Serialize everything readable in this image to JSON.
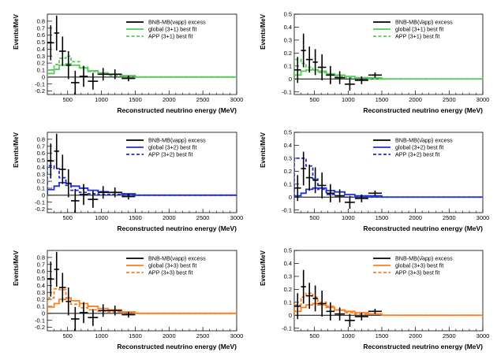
{
  "figure": {
    "description_free": true
  },
  "chart_data": [
    {
      "type": "line",
      "id": "nu-3p1",
      "xlabel": "Reconstructed neutrino energy (MeV)",
      "ylabel": "Events/MeV",
      "xlim": [
        200,
        3000
      ],
      "ylim": [
        -0.25,
        0.9
      ],
      "xticks": [
        500,
        1000,
        1500,
        2000,
        2500,
        3000
      ],
      "xtick_labels": [
        "500",
        "1000",
        "1500",
        "2000",
        "2500",
        "3000"
      ],
      "yticks": [
        -0.2,
        -0.1,
        0,
        0.1,
        0.2,
        0.3,
        0.4,
        0.5,
        0.6,
        0.7,
        0.8
      ],
      "ytick_labels": [
        "-0.2",
        "-0.1",
        "0",
        "0.1",
        "0.2",
        "0.3",
        "0.4",
        "0.5",
        "0.6",
        "0.7",
        "0.8"
      ],
      "bin_edges": [
        200,
        300,
        375,
        475,
        550,
        675,
        800,
        950,
        1100,
        1300,
        1500,
        3000
      ],
      "data": [
        {
          "x": 250,
          "xerr": 50,
          "y": 0.49,
          "yerr": 0.25
        },
        {
          "x": 337,
          "xerr": 37,
          "y": 0.63,
          "yerr": 0.25
        },
        {
          "x": 425,
          "xerr": 50,
          "y": 0.37,
          "yerr": 0.21
        },
        {
          "x": 512,
          "xerr": 37,
          "y": 0.17,
          "yerr": 0.2
        },
        {
          "x": 612,
          "xerr": 62,
          "y": -0.08,
          "yerr": 0.17
        },
        {
          "x": 737,
          "xerr": 62,
          "y": 0.01,
          "yerr": 0.15
        },
        {
          "x": 875,
          "xerr": 75,
          "y": -0.06,
          "yerr": 0.12
        },
        {
          "x": 1025,
          "xerr": 75,
          "y": 0.04,
          "yerr": 0.09
        },
        {
          "x": 1200,
          "xerr": 100,
          "y": 0.04,
          "yerr": 0.07
        },
        {
          "x": 1400,
          "xerr": 100,
          "y": -0.02,
          "yerr": 0.04
        }
      ],
      "series": [
        {
          "name": "global (3+1) best fit",
          "color": "#55cc55",
          "dash": "solid",
          "values": [
            0.05,
            0.11,
            0.17,
            0.19,
            0.17,
            0.13,
            0.09,
            0.06,
            0.04,
            0.02,
            0.0
          ]
        },
        {
          "name": "APP (3+1) best fit",
          "color": "#55cc55",
          "dash": "dashed",
          "values": [
            0.1,
            0.18,
            0.27,
            0.3,
            0.22,
            0.14,
            0.08,
            0.04,
            0.02,
            0.01,
            0.0
          ]
        }
      ],
      "legend": {
        "data_label": "BNB-MB(νapp) excess",
        "position": "top-right"
      }
    },
    {
      "type": "line",
      "id": "nubar-3p1",
      "xlabel": "Reconstructed neutrino energy (MeV)",
      "ylabel": "Events/MeV",
      "xlim": [
        200,
        3000
      ],
      "ylim": [
        -0.12,
        0.5
      ],
      "xticks": [
        500,
        1000,
        1500,
        2000,
        2500,
        3000
      ],
      "xtick_labels": [
        "500",
        "1000",
        "1500",
        "2000",
        "2500",
        "3000"
      ],
      "yticks": [
        -0.1,
        0,
        0.1,
        0.2,
        0.3,
        0.4,
        0.5
      ],
      "ytick_labels": [
        "-0.1",
        "0",
        "0.1",
        "0.2",
        "0.3",
        "0.4",
        "0.5"
      ],
      "bin_edges": [
        200,
        300,
        375,
        475,
        550,
        675,
        800,
        950,
        1100,
        1300,
        1500,
        3000
      ],
      "data": [
        {
          "x": 250,
          "xerr": 50,
          "y": 0.07,
          "yerr": 0.1
        },
        {
          "x": 337,
          "xerr": 37,
          "y": 0.22,
          "yerr": 0.13
        },
        {
          "x": 425,
          "xerr": 50,
          "y": 0.15,
          "yerr": 0.1
        },
        {
          "x": 512,
          "xerr": 37,
          "y": 0.13,
          "yerr": 0.1
        },
        {
          "x": 612,
          "xerr": 62,
          "y": 0.09,
          "yerr": 0.1
        },
        {
          "x": 737,
          "xerr": 62,
          "y": 0.03,
          "yerr": 0.07
        },
        {
          "x": 875,
          "xerr": 75,
          "y": 0.01,
          "yerr": 0.05
        },
        {
          "x": 1025,
          "xerr": 75,
          "y": -0.04,
          "yerr": 0.05
        },
        {
          "x": 1200,
          "xerr": 100,
          "y": -0.01,
          "yerr": 0.03
        },
        {
          "x": 1400,
          "xerr": 100,
          "y": 0.03,
          "yerr": 0.02
        }
      ],
      "series": [
        {
          "name": "global (3+1) best fit",
          "color": "#55cc55",
          "dash": "solid",
          "values": [
            0.03,
            0.06,
            0.07,
            0.07,
            0.06,
            0.04,
            0.03,
            0.02,
            0.01,
            0.01,
            0.0
          ]
        },
        {
          "name": "APP (3+1) best fit",
          "color": "#55cc55",
          "dash": "dashed",
          "values": [
            0.15,
            0.12,
            0.09,
            0.07,
            0.05,
            0.03,
            0.02,
            0.01,
            0.01,
            0.0,
            0.0
          ]
        }
      ],
      "legend": {
        "data_label": "BNB-MB(ν̄app) excess",
        "position": "top-right"
      }
    },
    {
      "type": "line",
      "id": "nu-3p2",
      "xlabel": "Reconstructed neutrino energy (MeV)",
      "ylabel": "Events/MeV",
      "xlim": [
        200,
        3000
      ],
      "ylim": [
        -0.25,
        0.9
      ],
      "xticks": [
        500,
        1000,
        1500,
        2000,
        2500,
        3000
      ],
      "xtick_labels": [
        "500",
        "1000",
        "1500",
        "2000",
        "2500",
        "3000"
      ],
      "yticks": [
        -0.2,
        -0.1,
        0,
        0.1,
        0.2,
        0.3,
        0.4,
        0.5,
        0.6,
        0.7,
        0.8
      ],
      "ytick_labels": [
        "-0.2",
        "-0.1",
        "0",
        "0.1",
        "0.2",
        "0.3",
        "0.4",
        "0.5",
        "0.6",
        "0.7",
        "0.8"
      ],
      "bin_edges": [
        200,
        300,
        375,
        475,
        550,
        675,
        800,
        950,
        1100,
        1300,
        1500,
        3000
      ],
      "data": [
        {
          "x": 250,
          "xerr": 50,
          "y": 0.49,
          "yerr": 0.25
        },
        {
          "x": 337,
          "xerr": 37,
          "y": 0.63,
          "yerr": 0.25
        },
        {
          "x": 425,
          "xerr": 50,
          "y": 0.37,
          "yerr": 0.21
        },
        {
          "x": 512,
          "xerr": 37,
          "y": 0.17,
          "yerr": 0.2
        },
        {
          "x": 612,
          "xerr": 62,
          "y": -0.08,
          "yerr": 0.17
        },
        {
          "x": 737,
          "xerr": 62,
          "y": 0.01,
          "yerr": 0.15
        },
        {
          "x": 875,
          "xerr": 75,
          "y": -0.06,
          "yerr": 0.12
        },
        {
          "x": 1025,
          "xerr": 75,
          "y": 0.04,
          "yerr": 0.09
        },
        {
          "x": 1200,
          "xerr": 100,
          "y": 0.04,
          "yerr": 0.07
        },
        {
          "x": 1400,
          "xerr": 100,
          "y": -0.02,
          "yerr": 0.04
        }
      ],
      "series": [
        {
          "name": "global (3+2) best fit",
          "color": "#1f2fdd",
          "dash": "solid",
          "values": [
            0.08,
            0.13,
            0.18,
            0.17,
            0.13,
            0.1,
            0.07,
            0.05,
            0.04,
            0.02,
            0.0
          ]
        },
        {
          "name": "APP (3+2) best fit",
          "color": "#1f2fdd",
          "dash": "dashed",
          "values": [
            0.42,
            0.38,
            0.25,
            0.14,
            0.07,
            0.04,
            0.02,
            0.01,
            0.01,
            0.0,
            0.0
          ]
        }
      ],
      "legend": {
        "data_label": "BNB-MB(νapp) excess",
        "position": "top-right"
      }
    },
    {
      "type": "line",
      "id": "nubar-3p2",
      "xlabel": "Reconstructed neutrino energy (MeV)",
      "ylabel": "Events/MeV",
      "xlim": [
        200,
        3000
      ],
      "ylim": [
        -0.12,
        0.5
      ],
      "xticks": [
        500,
        1000,
        1500,
        2000,
        2500,
        3000
      ],
      "xtick_labels": [
        "500",
        "1000",
        "1500",
        "2000",
        "2500",
        "3000"
      ],
      "yticks": [
        -0.1,
        0,
        0.1,
        0.2,
        0.3,
        0.4,
        0.5
      ],
      "ytick_labels": [
        "-0.1",
        "0",
        "0.1",
        "0.2",
        "0.3",
        "0.4",
        "0.5"
      ],
      "bin_edges": [
        200,
        300,
        375,
        475,
        550,
        675,
        800,
        950,
        1100,
        1300,
        1500,
        3000
      ],
      "data": [
        {
          "x": 250,
          "xerr": 50,
          "y": 0.07,
          "yerr": 0.1
        },
        {
          "x": 337,
          "xerr": 37,
          "y": 0.22,
          "yerr": 0.13
        },
        {
          "x": 425,
          "xerr": 50,
          "y": 0.15,
          "yerr": 0.1
        },
        {
          "x": 512,
          "xerr": 37,
          "y": 0.13,
          "yerr": 0.1
        },
        {
          "x": 612,
          "xerr": 62,
          "y": 0.09,
          "yerr": 0.1
        },
        {
          "x": 737,
          "xerr": 62,
          "y": 0.03,
          "yerr": 0.07
        },
        {
          "x": 875,
          "xerr": 75,
          "y": 0.01,
          "yerr": 0.05
        },
        {
          "x": 1025,
          "xerr": 75,
          "y": -0.04,
          "yerr": 0.05
        },
        {
          "x": 1200,
          "xerr": 100,
          "y": -0.01,
          "yerr": 0.03
        },
        {
          "x": 1400,
          "xerr": 100,
          "y": 0.03,
          "yerr": 0.02
        }
      ],
      "series": [
        {
          "name": "global (3+2) best fit",
          "color": "#1f2fdd",
          "dash": "solid",
          "values": [
            0.01,
            0.03,
            0.06,
            0.07,
            0.07,
            0.05,
            0.04,
            0.02,
            0.01,
            0.01,
            0.0
          ]
        },
        {
          "name": "APP (3+2) best fit",
          "color": "#1f2fdd",
          "dash": "dashed",
          "values": [
            0.3,
            0.3,
            0.24,
            0.14,
            0.06,
            0.02,
            0.01,
            0.0,
            0.0,
            0.0,
            0.0
          ]
        }
      ],
      "legend": {
        "data_label": "BNB-MB(ν̄app) excess",
        "position": "top-right"
      }
    },
    {
      "type": "line",
      "id": "nu-3p3",
      "xlabel": "Reconstructed neutrino energy (MeV)",
      "ylabel": "Events/MeV",
      "xlim": [
        200,
        3000
      ],
      "ylim": [
        -0.25,
        0.9
      ],
      "xticks": [
        500,
        1000,
        1500,
        2000,
        2500,
        3000
      ],
      "xtick_labels": [
        "500",
        "1000",
        "1500",
        "2000",
        "2500",
        "3000"
      ],
      "yticks": [
        -0.2,
        -0.1,
        0,
        0.1,
        0.2,
        0.3,
        0.4,
        0.5,
        0.6,
        0.7,
        0.8
      ],
      "ytick_labels": [
        "-0.2",
        "-0.1",
        "0",
        "0.1",
        "0.2",
        "0.3",
        "0.4",
        "0.5",
        "0.6",
        "0.7",
        "0.8"
      ],
      "bin_edges": [
        200,
        300,
        375,
        475,
        550,
        675,
        800,
        950,
        1100,
        1300,
        1500,
        3000
      ],
      "data": [
        {
          "x": 250,
          "xerr": 50,
          "y": 0.49,
          "yerr": 0.25
        },
        {
          "x": 337,
          "xerr": 37,
          "y": 0.63,
          "yerr": 0.25
        },
        {
          "x": 425,
          "xerr": 50,
          "y": 0.37,
          "yerr": 0.21
        },
        {
          "x": 512,
          "xerr": 37,
          "y": 0.17,
          "yerr": 0.2
        },
        {
          "x": 612,
          "xerr": 62,
          "y": -0.08,
          "yerr": 0.17
        },
        {
          "x": 737,
          "xerr": 62,
          "y": 0.01,
          "yerr": 0.15
        },
        {
          "x": 875,
          "xerr": 75,
          "y": -0.06,
          "yerr": 0.12
        },
        {
          "x": 1025,
          "xerr": 75,
          "y": 0.04,
          "yerr": 0.09
        },
        {
          "x": 1200,
          "xerr": 100,
          "y": 0.04,
          "yerr": 0.07
        },
        {
          "x": 1400,
          "xerr": 100,
          "y": -0.02,
          "yerr": 0.04
        }
      ],
      "series": [
        {
          "name": "global (3+3) best fit",
          "color": "#ff7f1e",
          "dash": "solid",
          "values": [
            0.09,
            0.14,
            0.2,
            0.22,
            0.18,
            0.14,
            0.1,
            0.07,
            0.05,
            0.02,
            0.0
          ]
        },
        {
          "name": "APP (3+3) best fit",
          "color": "#ff7f1e",
          "dash": "dashed",
          "values": [
            0.22,
            0.35,
            0.34,
            0.22,
            0.13,
            0.08,
            0.05,
            0.03,
            0.02,
            0.01,
            0.0
          ]
        }
      ],
      "legend": {
        "data_label": "BNB-MB(νapp) excess",
        "position": "top-right"
      }
    },
    {
      "type": "line",
      "id": "nubar-3p3",
      "xlabel": "Reconstructed neutrino energy (MeV)",
      "ylabel": "Events/MeV",
      "xlim": [
        200,
        3000
      ],
      "ylim": [
        -0.12,
        0.5
      ],
      "xticks": [
        500,
        1000,
        1500,
        2000,
        2500,
        3000
      ],
      "xtick_labels": [
        "500",
        "1000",
        "1500",
        "2000",
        "2500",
        "3000"
      ],
      "yticks": [
        -0.1,
        0,
        0.1,
        0.2,
        0.3,
        0.4,
        0.5
      ],
      "ytick_labels": [
        "-0.1",
        "0",
        "0.1",
        "0.2",
        "0.3",
        "0.4",
        "0.5"
      ],
      "bin_edges": [
        200,
        300,
        375,
        475,
        550,
        675,
        800,
        950,
        1100,
        1300,
        1500,
        3000
      ],
      "data": [
        {
          "x": 250,
          "xerr": 50,
          "y": 0.07,
          "yerr": 0.1
        },
        {
          "x": 337,
          "xerr": 37,
          "y": 0.22,
          "yerr": 0.13
        },
        {
          "x": 425,
          "xerr": 50,
          "y": 0.15,
          "yerr": 0.1
        },
        {
          "x": 512,
          "xerr": 37,
          "y": 0.13,
          "yerr": 0.1
        },
        {
          "x": 612,
          "xerr": 62,
          "y": 0.09,
          "yerr": 0.1
        },
        {
          "x": 737,
          "xerr": 62,
          "y": 0.03,
          "yerr": 0.07
        },
        {
          "x": 875,
          "xerr": 75,
          "y": 0.01,
          "yerr": 0.05
        },
        {
          "x": 1025,
          "xerr": 75,
          "y": -0.04,
          "yerr": 0.05
        },
        {
          "x": 1200,
          "xerr": 100,
          "y": -0.01,
          "yerr": 0.03
        },
        {
          "x": 1400,
          "xerr": 100,
          "y": 0.03,
          "yerr": 0.02
        }
      ],
      "series": [
        {
          "name": "global (3+3) best fit",
          "color": "#ff7f1e",
          "dash": "solid",
          "values": [
            0.03,
            0.06,
            0.08,
            0.09,
            0.08,
            0.06,
            0.04,
            0.03,
            0.02,
            0.01,
            0.0
          ]
        },
        {
          "name": "APP (3+3) best fit",
          "color": "#ff7f1e",
          "dash": "dashed",
          "values": [
            0.08,
            0.14,
            0.17,
            0.14,
            0.1,
            0.07,
            0.04,
            0.02,
            0.01,
            0.01,
            0.0
          ]
        }
      ],
      "legend": {
        "data_label": "BNB-MB(ν̄app) excess",
        "position": "top-right"
      }
    }
  ]
}
